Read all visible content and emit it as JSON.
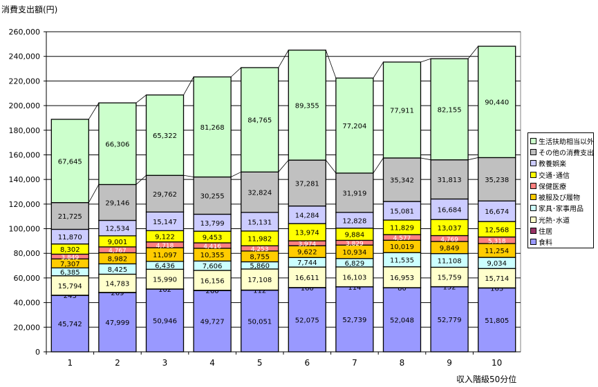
{
  "chart_data": {
    "type": "bar",
    "stacked": true,
    "ylabel": "消費支出額(円)",
    "xlabel": "収入階級50分位",
    "ylim": [
      0,
      260000
    ],
    "yticks": [
      "0",
      "20,000",
      "40,000",
      "60,000",
      "80,000",
      "100,000",
      "120,000",
      "140,000",
      "160,000",
      "180,000",
      "200,000",
      "220,000",
      "240,000",
      "260,000"
    ],
    "categories": [
      "1",
      "2",
      "3",
      "4",
      "5",
      "6",
      "7",
      "8",
      "9",
      "10"
    ],
    "grid": true,
    "legend_position": "right",
    "series": [
      {
        "name": "食料",
        "color": "#9999ff",
        "values": [
          45742,
          47999,
          50946,
          49727,
          50051,
          52075,
          52739,
          52048,
          52779,
          51805
        ]
      },
      {
        "name": "住居",
        "color": "#993366",
        "values": [
          243,
          269,
          102,
          260,
          112,
          160,
          114,
          80,
          152,
          163
        ]
      },
      {
        "name": "光熱･水道",
        "color": "#ffffcc",
        "values": [
          15794,
          14783,
          15990,
          16156,
          17108,
          16611,
          16103,
          16953,
          15759,
          15714
        ]
      },
      {
        "name": "家具･家事用品",
        "color": "#ccffff",
        "values": [
          6385,
          8425,
          6436,
          7606,
          5860,
          7744,
          6829,
          11535,
          11108,
          9034
        ]
      },
      {
        "name": "被服及び履物",
        "color": "#ffcc00",
        "values": [
          7307,
          8982,
          11097,
          10355,
          8755,
          9622,
          10934,
          10019,
          9849,
          11254
        ]
      },
      {
        "name": "保健医療",
        "color": "#ff8080",
        "values": [
          3849,
          4767,
          4718,
          4416,
          4253,
          3974,
          3829,
          4577,
          4769,
          5318
        ]
      },
      {
        "name": "交通･通信",
        "color": "#ffff00",
        "values": [
          8302,
          9001,
          9122,
          9453,
          11982,
          13974,
          9884,
          11829,
          13037,
          12568
        ]
      },
      {
        "name": "教養娯楽",
        "color": "#ccccff",
        "values": [
          11870,
          12534,
          15147,
          13799,
          15131,
          14284,
          12828,
          15081,
          16684,
          16674
        ]
      },
      {
        "name": "その他の消費支出",
        "color": "#c0c0c0",
        "values": [
          21725,
          29146,
          29762,
          30255,
          32824,
          37281,
          31919,
          35342,
          31813,
          35238
        ]
      },
      {
        "name": "生活扶助相当以外",
        "color": "#ccffcc",
        "values": [
          67645,
          66306,
          65322,
          81268,
          84765,
          89355,
          77204,
          77911,
          82155,
          90440
        ]
      }
    ]
  }
}
